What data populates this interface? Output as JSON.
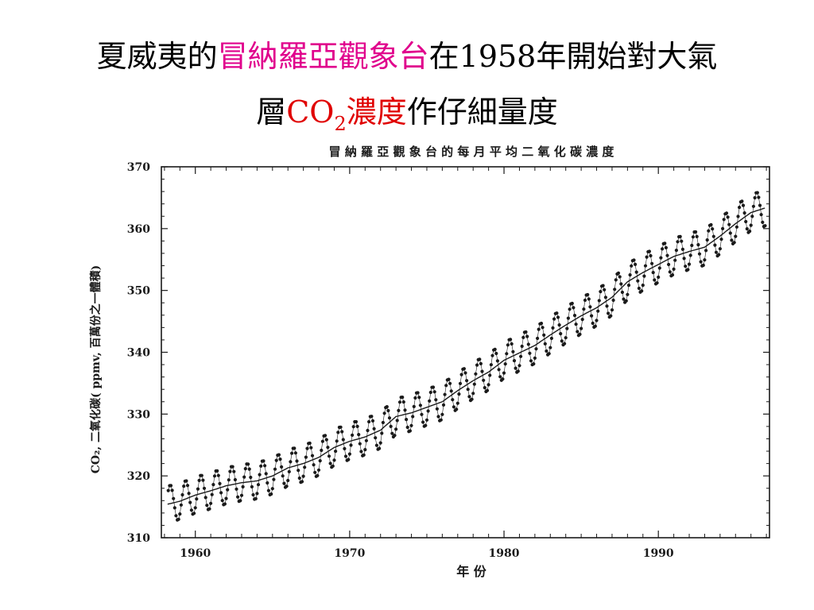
{
  "slide": {
    "title_line1_pre": "夏威夷的",
    "title_line1_hl": "冒納羅亞觀象台",
    "title_line1_post": "在1958年開始對大氣",
    "title_line2_pre": "層",
    "title_line2_co": "CO",
    "title_line2_sub": "2",
    "title_line2_hl": "濃度",
    "title_line2_post": "作仔細量度",
    "colors": {
      "highlight_magenta": "#e0008c",
      "highlight_red": "#e00000",
      "text": "#000000"
    }
  },
  "chart_data": {
    "type": "line",
    "title": "冒 納 羅 亞 觀 象 台 的 每 月 平 均 二 氧 化 碳 濃 度",
    "xlabel": "年 份",
    "ylabel": "CO₂, 二氧化碳( ppmv, 百萬份之一體積)",
    "xlim": [
      1957.8,
      1997.2
    ],
    "ylim": [
      310,
      370
    ],
    "x_ticks": [
      1960,
      1970,
      1980,
      1990
    ],
    "x_tick_labels": [
      "1960",
      "1970",
      "1980",
      "1990"
    ],
    "y_ticks": [
      310,
      320,
      330,
      340,
      350,
      360,
      370
    ],
    "y_tick_labels": [
      "310",
      "320",
      "330",
      "340",
      "350",
      "360",
      "370"
    ],
    "grid": false,
    "legend": "none",
    "series": [
      {
        "kind": "monthly_points",
        "x_start": 1958.25,
        "x_step": 0.083333,
        "seasonal_amplitude": 3.0,
        "points_per_year": 12,
        "annual_trend": [
          [
            1958,
            315.3
          ],
          [
            1959,
            315.9
          ],
          [
            1960,
            316.9
          ],
          [
            1961,
            317.6
          ],
          [
            1962,
            318.4
          ],
          [
            1963,
            318.9
          ],
          [
            1964,
            319.2
          ],
          [
            1965,
            320.0
          ],
          [
            1966,
            321.3
          ],
          [
            1967,
            322.0
          ],
          [
            1968,
            323.0
          ],
          [
            1969,
            324.6
          ],
          [
            1970,
            325.6
          ],
          [
            1971,
            326.3
          ],
          [
            1972,
            327.4
          ],
          [
            1973,
            329.6
          ],
          [
            1974,
            330.2
          ],
          [
            1975,
            331.1
          ],
          [
            1976,
            332.0
          ],
          [
            1977,
            333.8
          ],
          [
            1978,
            335.4
          ],
          [
            1979,
            336.8
          ],
          [
            1980,
            338.7
          ],
          [
            1981,
            339.9
          ],
          [
            1982,
            341.1
          ],
          [
            1983,
            342.8
          ],
          [
            1984,
            344.4
          ],
          [
            1985,
            345.9
          ],
          [
            1986,
            347.2
          ],
          [
            1987,
            348.9
          ],
          [
            1988,
            351.4
          ],
          [
            1989,
            352.9
          ],
          [
            1990,
            354.2
          ],
          [
            1991,
            355.5
          ],
          [
            1992,
            356.3
          ],
          [
            1993,
            357.0
          ],
          [
            1994,
            358.8
          ],
          [
            1995,
            360.8
          ],
          [
            1996,
            362.6
          ],
          [
            1997,
            363.4
          ]
        ]
      },
      {
        "kind": "trend_line",
        "uses": "annual_trend"
      }
    ],
    "colors": {
      "ink": "#1a1a1a"
    }
  }
}
